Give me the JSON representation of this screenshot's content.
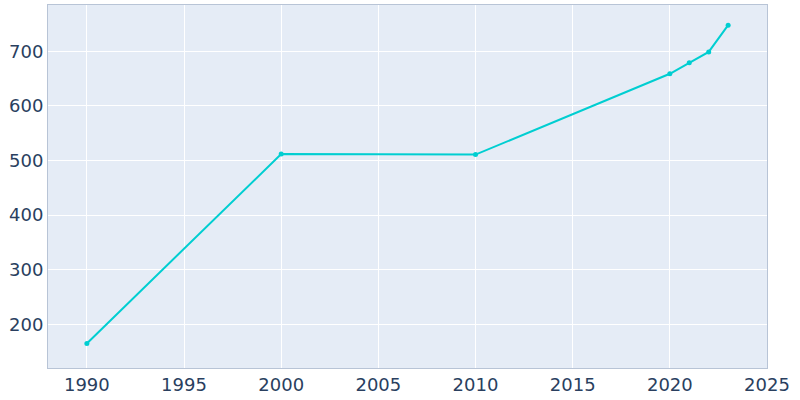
{
  "chart_data": {
    "type": "line",
    "x": [
      1990,
      2000,
      2010,
      2020,
      2021,
      2022,
      2023
    ],
    "values": [
      165,
      512,
      511,
      659,
      679,
      699,
      748
    ],
    "color": "#00ced1",
    "marker": "circle",
    "xlim": [
      1988,
      2025
    ],
    "xticks": [
      1990,
      1995,
      2000,
      2005,
      2010,
      2015,
      2020,
      2025
    ],
    "ylim": [
      120,
      785
    ],
    "yticks": [
      200,
      300,
      400,
      500,
      600,
      700
    ],
    "grid": true
  }
}
